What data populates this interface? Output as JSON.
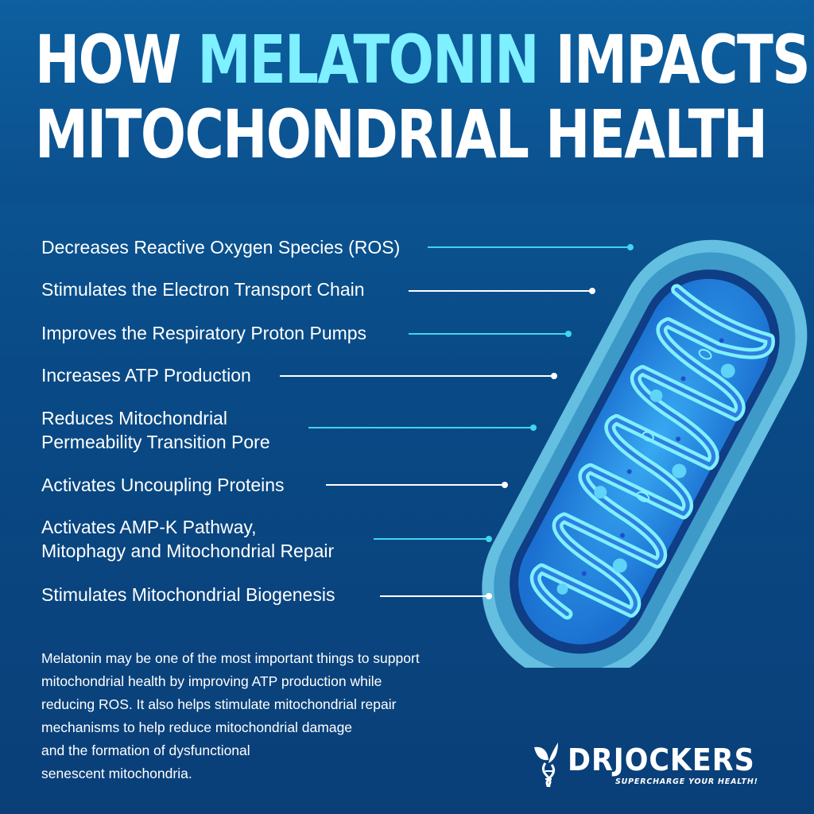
{
  "title": {
    "word1": "HOW",
    "word2": "MELATONIN",
    "word3": "IMPACTS",
    "line2": "MITOCHONDRIAL HEALTH"
  },
  "benefits": [
    {
      "lines": [
        "Decreases Reactive Oxygen Species (ROS)"
      ]
    },
    {
      "lines": [
        "Stimulates the Electron Transport Chain"
      ]
    },
    {
      "lines": [
        "Improves the Respiratory Proton Pumps"
      ]
    },
    {
      "lines": [
        "Increases ATP Production"
      ]
    },
    {
      "lines": [
        "Reduces Mitochondrial",
        "Permeability Transition Pore"
      ]
    },
    {
      "lines": [
        "Activates Uncoupling Proteins"
      ]
    },
    {
      "lines": [
        "Activates AMP-K Pathway,",
        "Mitophagy and Mitochondrial Repair"
      ]
    },
    {
      "lines": [
        "Stimulates Mitochondrial Biogenesis"
      ]
    }
  ],
  "paragraph": [
    "Melatonin may be one of the most important things to support",
    "mitochondrial health by improving ATP production while",
    "reducing ROS. It also helps stimulate mitochondrial repair",
    "mechanisms to help reduce mitochondrial damage",
    "and the formation of dysfunctional",
    "senescent mitochondria."
  ],
  "logo": {
    "name": "DRJOCKERS",
    "tagline": "SUPERCHARGE YOUR HEALTH!"
  },
  "colors": {
    "accent": "#7ff0ff",
    "line_cyan": "#3fd6f0",
    "line_white": "#ffffff"
  },
  "illustration": "mitochondrion-illustration"
}
